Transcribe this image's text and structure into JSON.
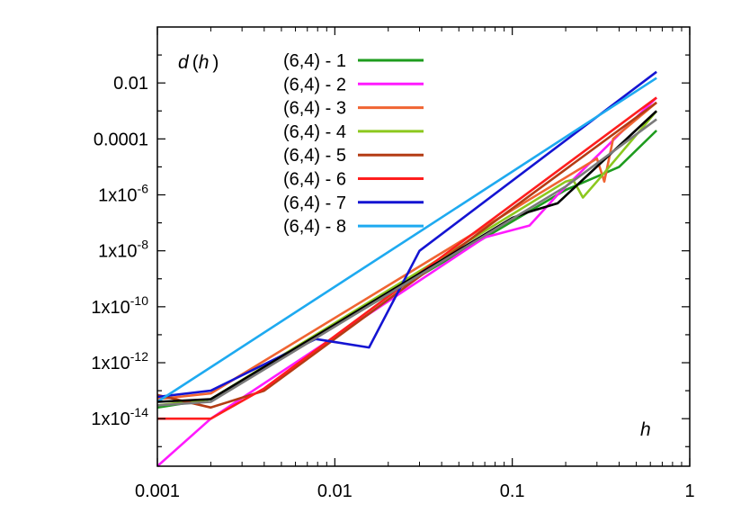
{
  "chart_data": {
    "type": "line",
    "title": "",
    "xlabel": "h",
    "ylabel": {
      "var": "d",
      "arg": "h"
    },
    "x_scale": "log",
    "y_scale": "log",
    "xlim": [
      0.001,
      1
    ],
    "ylim": [
      2e-16,
      1
    ],
    "grid": false,
    "legend_position": "top-left",
    "x_ticks": [
      {
        "value": 0.001,
        "label": "0.001"
      },
      {
        "value": 0.01,
        "label": "0.01"
      },
      {
        "value": 0.1,
        "label": "0.1"
      },
      {
        "value": 1,
        "label": "1"
      }
    ],
    "y_ticks": [
      {
        "value": 1e-14,
        "base": "1x10",
        "exp": "-14",
        "label": ""
      },
      {
        "value": 1e-12,
        "base": "1x10",
        "exp": "-12",
        "label": ""
      },
      {
        "value": 1e-10,
        "base": "1x10",
        "exp": "-10",
        "label": ""
      },
      {
        "value": 1e-08,
        "base": "1x10",
        "exp": "-8",
        "label": ""
      },
      {
        "value": 1e-06,
        "base": "1x10",
        "exp": "-6",
        "label": ""
      },
      {
        "value": 0.0001,
        "base": "",
        "exp": "",
        "label": "0.0001"
      },
      {
        "value": 0.01,
        "base": "",
        "exp": "",
        "label": "0.01"
      }
    ],
    "series": [
      {
        "name": "(6,4) - 1",
        "color": "#1e9c1e",
        "x": [
          0.001,
          0.002,
          0.2,
          0.3,
          0.4,
          0.65
        ],
        "y": [
          2.5e-14,
          5e-14,
          1.5e-06,
          4.5e-06,
          1e-05,
          0.0002
        ]
      },
      {
        "name": "(6,4) - 2",
        "color": "#ff1aff",
        "x": [
          0.001,
          0.002,
          0.07,
          0.125,
          0.18,
          0.65
        ],
        "y": [
          2e-16,
          1e-14,
          3e-08,
          8e-08,
          1e-06,
          0.003
        ]
      },
      {
        "name": "(6,4) - 3",
        "color": "#f06432",
        "x": [
          0.001,
          0.002,
          0.3,
          0.33,
          0.37,
          0.65
        ],
        "y": [
          5e-14,
          8e-14,
          2e-05,
          3e-06,
          0.0001,
          0.002
        ]
      },
      {
        "name": "(6,4) - 4",
        "color": "#8cc81e",
        "x": [
          0.001,
          0.002,
          0.2,
          0.22,
          0.25,
          0.3,
          0.65
        ],
        "y": [
          3e-14,
          5e-14,
          3e-06,
          3.5e-06,
          8e-07,
          3e-06,
          0.001
        ]
      },
      {
        "name": "(6,4) - 5",
        "color": "#b43c14",
        "x": [
          0.001,
          0.002,
          0.004,
          0.65
        ],
        "y": [
          7e-14,
          2.5e-14,
          1e-13,
          0.002
        ]
      },
      {
        "name": "(6,4) - 6",
        "color": "#ff1e1e",
        "x": [
          0.001,
          0.002,
          0.004,
          0.65
        ],
        "y": [
          1e-14,
          1e-14,
          1.2e-13,
          0.003
        ]
      },
      {
        "name": "(6,4) - 7",
        "color": "#1414d2",
        "x": [
          0.001,
          0.002,
          0.0078,
          0.0156,
          0.03,
          0.65
        ],
        "y": [
          6e-14,
          1e-13,
          7e-12,
          3.5e-12,
          1e-08,
          0.025
        ]
      },
      {
        "name": "(6,4) - 8",
        "color": "#1eaaf0",
        "x": [
          0.001,
          0.65
        ],
        "y": [
          4e-14,
          0.015
        ]
      },
      {
        "name": "",
        "color": "#000000",
        "x": [
          0.001,
          0.002,
          0.1,
          0.125,
          0.18,
          0.65
        ],
        "y": [
          4e-14,
          5e-14,
          1.5e-07,
          2.5e-07,
          5e-07,
          0.001
        ]
      },
      {
        "name": "",
        "color": "#7a7a7a",
        "x": [
          0.001,
          0.002,
          0.2,
          0.65
        ],
        "y": [
          3e-14,
          4e-14,
          2e-06,
          0.0005
        ]
      }
    ]
  }
}
